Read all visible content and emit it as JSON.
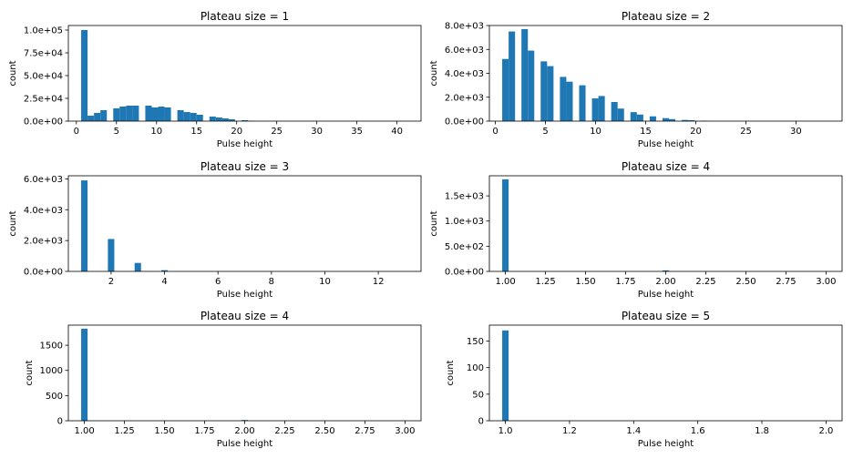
{
  "figure": {
    "colors": {
      "bar": "#1f77b4",
      "axis": "#000000",
      "background": "#ffffff"
    }
  },
  "chart_data": [
    {
      "type": "bar",
      "title": "Plateau size = 1",
      "xlabel": "Pulse height",
      "ylabel": "count",
      "xlim": [
        -1,
        43
      ],
      "ylim": [
        0,
        105000
      ],
      "bin_width": 0.8,
      "xticks": [
        0,
        5,
        10,
        15,
        20,
        25,
        30,
        35,
        40
      ],
      "xtick_labels": [
        "0",
        "5",
        "10",
        "15",
        "20",
        "25",
        "30",
        "35",
        "40"
      ],
      "yticks": [
        0,
        25000,
        50000,
        75000,
        100000
      ],
      "ytick_labels": [
        "0.0e+00",
        "2.5e+04",
        "5.0e+04",
        "7.5e+04",
        "1.0e+05"
      ],
      "bars": [
        {
          "x": 1.0,
          "y": 100000
        },
        {
          "x": 1.8,
          "y": 6000
        },
        {
          "x": 2.6,
          "y": 9000
        },
        {
          "x": 3.4,
          "y": 12000
        },
        {
          "x": 5.0,
          "y": 14000
        },
        {
          "x": 5.8,
          "y": 16000
        },
        {
          "x": 6.6,
          "y": 17000
        },
        {
          "x": 7.4,
          "y": 17000
        },
        {
          "x": 9.0,
          "y": 17000
        },
        {
          "x": 9.8,
          "y": 15000
        },
        {
          "x": 10.6,
          "y": 16000
        },
        {
          "x": 11.4,
          "y": 15000
        },
        {
          "x": 13.0,
          "y": 12000
        },
        {
          "x": 13.8,
          "y": 10000
        },
        {
          "x": 14.6,
          "y": 9000
        },
        {
          "x": 15.4,
          "y": 7000
        },
        {
          "x": 17.0,
          "y": 5000
        },
        {
          "x": 17.8,
          "y": 4000
        },
        {
          "x": 18.6,
          "y": 3000
        },
        {
          "x": 19.4,
          "y": 2000
        },
        {
          "x": 21.0,
          "y": 1000
        },
        {
          "x": 21.8,
          "y": 300
        }
      ]
    },
    {
      "type": "bar",
      "title": "Plateau size = 2",
      "xlabel": "Pulse height",
      "ylabel": "count",
      "xlim": [
        -0.6,
        34.6
      ],
      "ylim": [
        0,
        8000
      ],
      "bin_width": 0.64,
      "xticks": [
        0,
        5,
        10,
        15,
        20,
        25,
        30
      ],
      "xtick_labels": [
        "0",
        "5",
        "10",
        "15",
        "20",
        "25",
        "30"
      ],
      "yticks": [
        0,
        2000,
        4000,
        6000,
        8000
      ],
      "ytick_labels": [
        "0.0e+00",
        "2.0e+03",
        "4.0e+03",
        "6.0e+03",
        "8.0e+03"
      ],
      "bars": [
        {
          "x": 1.0,
          "y": 5200
        },
        {
          "x": 1.64,
          "y": 7500
        },
        {
          "x": 2.92,
          "y": 7700
        },
        {
          "x": 3.56,
          "y": 5900
        },
        {
          "x": 4.84,
          "y": 5000
        },
        {
          "x": 5.48,
          "y": 4600
        },
        {
          "x": 6.76,
          "y": 3700
        },
        {
          "x": 7.4,
          "y": 3300
        },
        {
          "x": 8.68,
          "y": 3000
        },
        {
          "x": 9.96,
          "y": 1900
        },
        {
          "x": 10.6,
          "y": 2100
        },
        {
          "x": 11.88,
          "y": 1600
        },
        {
          "x": 12.52,
          "y": 1050
        },
        {
          "x": 13.8,
          "y": 750
        },
        {
          "x": 14.44,
          "y": 550
        },
        {
          "x": 15.72,
          "y": 400
        },
        {
          "x": 17.0,
          "y": 250
        },
        {
          "x": 17.64,
          "y": 170
        },
        {
          "x": 18.92,
          "y": 100
        },
        {
          "x": 19.56,
          "y": 80
        },
        {
          "x": 20.84,
          "y": 30
        }
      ]
    },
    {
      "type": "bar",
      "title": "Plateau size = 3",
      "xlabel": "Pulse height",
      "ylabel": "count",
      "xlim": [
        0.4,
        13.6
      ],
      "ylim": [
        0,
        6200
      ],
      "bin_width": 0.24,
      "xticks": [
        2,
        4,
        6,
        8,
        10,
        12
      ],
      "xtick_labels": [
        "2",
        "4",
        "6",
        "8",
        "10",
        "12"
      ],
      "yticks": [
        0,
        2000,
        4000,
        6000
      ],
      "ytick_labels": [
        "0.0e+00",
        "2.0e+03",
        "4.0e+03",
        "6.0e+03"
      ],
      "bars": [
        {
          "x": 1.0,
          "y": 5900
        },
        {
          "x": 2.0,
          "y": 2100
        },
        {
          "x": 3.0,
          "y": 550
        },
        {
          "x": 4.0,
          "y": 80
        }
      ]
    },
    {
      "type": "bar",
      "title": "Plateau size = 4",
      "xlabel": "Pulse height",
      "ylabel": "count",
      "xlim": [
        0.9,
        3.1
      ],
      "ylim": [
        0,
        1900
      ],
      "bin_width": 0.04,
      "xticks": [
        1.0,
        1.25,
        1.5,
        1.75,
        2.0,
        2.25,
        2.5,
        2.75,
        3.0
      ],
      "xtick_labels": [
        "1.00",
        "1.25",
        "1.50",
        "1.75",
        "2.00",
        "2.25",
        "2.50",
        "2.75",
        "3.00"
      ],
      "yticks": [
        0,
        500,
        1000,
        1500
      ],
      "ytick_labels": [
        "0.0e+00",
        "5.0e+02",
        "1.0e+03",
        "1.5e+03"
      ],
      "bars": [
        {
          "x": 1.0,
          "y": 1830
        },
        {
          "x": 2.0,
          "y": 20
        }
      ]
    },
    {
      "type": "bar",
      "title": "Plateau size = 4",
      "xlabel": "Pulse height",
      "ylabel": "count",
      "xlim": [
        0.9,
        3.1
      ],
      "ylim": [
        0,
        1900
      ],
      "bin_width": 0.04,
      "xticks": [
        1.0,
        1.25,
        1.5,
        1.75,
        2.0,
        2.25,
        2.5,
        2.75,
        3.0
      ],
      "xtick_labels": [
        "1.00",
        "1.25",
        "1.50",
        "1.75",
        "2.00",
        "2.25",
        "2.50",
        "2.75",
        "3.00"
      ],
      "yticks": [
        0,
        500,
        1000,
        1500
      ],
      "ytick_labels": [
        "0",
        "500",
        "1000",
        "1500"
      ],
      "bars": [
        {
          "x": 1.0,
          "y": 1830
        },
        {
          "x": 2.0,
          "y": 15
        }
      ]
    },
    {
      "type": "bar",
      "title": "Plateau size = 5",
      "xlabel": "Pulse height",
      "ylabel": "count",
      "xlim": [
        0.95,
        2.05
      ],
      "ylim": [
        0,
        180
      ],
      "bin_width": 0.02,
      "xticks": [
        1.0,
        1.2,
        1.4,
        1.6,
        1.8,
        2.0
      ],
      "xtick_labels": [
        "1.0",
        "1.2",
        "1.4",
        "1.6",
        "1.8",
        "2.0"
      ],
      "yticks": [
        0,
        50,
        100,
        150
      ],
      "ytick_labels": [
        "0",
        "50",
        "100",
        "150"
      ],
      "bars": [
        {
          "x": 1.0,
          "y": 170
        }
      ]
    }
  ]
}
